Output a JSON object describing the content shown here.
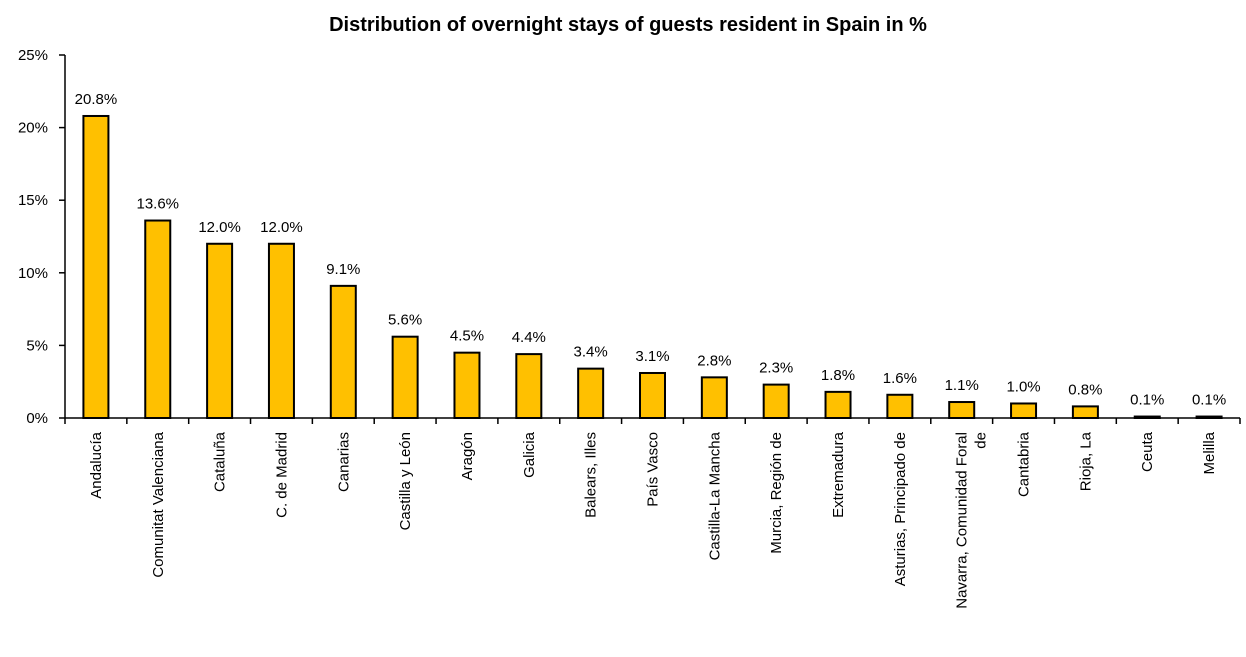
{
  "chart_data": {
    "type": "bar",
    "title": "Distribution of overnight stays of guests resident in Spain in %",
    "xlabel": "",
    "ylabel": "",
    "ylim": [
      0,
      25
    ],
    "yticks": [
      0,
      5,
      10,
      15,
      20,
      25
    ],
    "ytick_labels": [
      "0%",
      "5%",
      "10%",
      "15%",
      "20%",
      "25%"
    ],
    "grid": false,
    "legend": "none",
    "bar_color": "#FFC000",
    "bar_edge_color": "#000000",
    "categories": [
      [
        "Andalucía"
      ],
      [
        "Comunitat Valenciana"
      ],
      [
        "Cataluña"
      ],
      [
        "C. de Madrid"
      ],
      [
        "Canarias"
      ],
      [
        "Castilla y León"
      ],
      [
        "Aragón"
      ],
      [
        "Galicia"
      ],
      [
        "Balears, Illes"
      ],
      [
        "País Vasco"
      ],
      [
        "Castilla-La Mancha"
      ],
      [
        "Murcia, Región de"
      ],
      [
        "Extremadura"
      ],
      [
        "Asturias, Principado de"
      ],
      [
        "Navarra, Comunidad Foral",
        "de"
      ],
      [
        "Cantabria"
      ],
      [
        "Rioja, La"
      ],
      [
        "Ceuta"
      ],
      [
        "Melilla"
      ]
    ],
    "values": [
      20.8,
      13.6,
      12.0,
      12.0,
      9.1,
      5.6,
      4.5,
      4.4,
      3.4,
      3.1,
      2.8,
      2.3,
      1.8,
      1.6,
      1.1,
      1.0,
      0.8,
      0.1,
      0.1
    ],
    "data_labels": [
      "20.8%",
      "13.6%",
      "12.0%",
      "12.0%",
      "9.1%",
      "5.6%",
      "4.5%",
      "4.4%",
      "3.4%",
      "3.1%",
      "2.8%",
      "2.3%",
      "1.8%",
      "1.6%",
      "1.1%",
      "1.0%",
      "0.8%",
      "0.1%",
      "0.1%"
    ]
  }
}
